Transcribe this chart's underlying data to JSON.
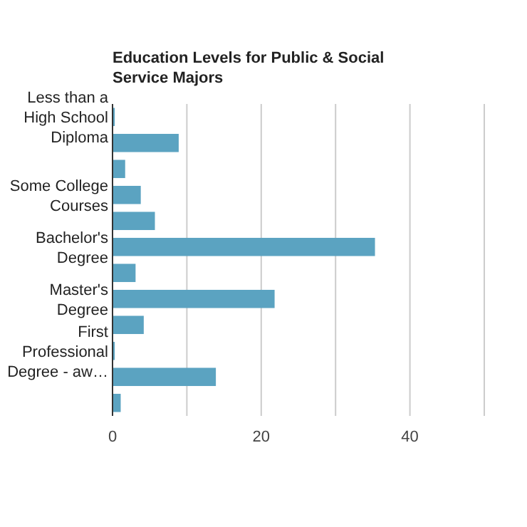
{
  "chart_data": {
    "type": "bar",
    "orientation": "horizontal",
    "title": "Education Levels for Public & Social Service Majors",
    "categories": [
      "Less than a High School Diploma",
      null,
      null,
      "Some College Courses",
      null,
      "Bachelor's Degree",
      null,
      "Master's Degree",
      null,
      "First Professional Degree - aw…",
      null,
      null
    ],
    "values": [
      0.3,
      8.9,
      1.7,
      3.8,
      5.7,
      35.3,
      3.1,
      21.8,
      4.2,
      0.3,
      13.9,
      1.1
    ],
    "color": "#5ba3c1",
    "xlim": [
      0,
      50
    ],
    "xticks": [
      0,
      {
        "value": 10,
        "label": null
      },
      20,
      {
        "value": 30,
        "label": null
      },
      40,
      {
        "value": 50,
        "label": null
      }
    ],
    "grid": "x"
  }
}
